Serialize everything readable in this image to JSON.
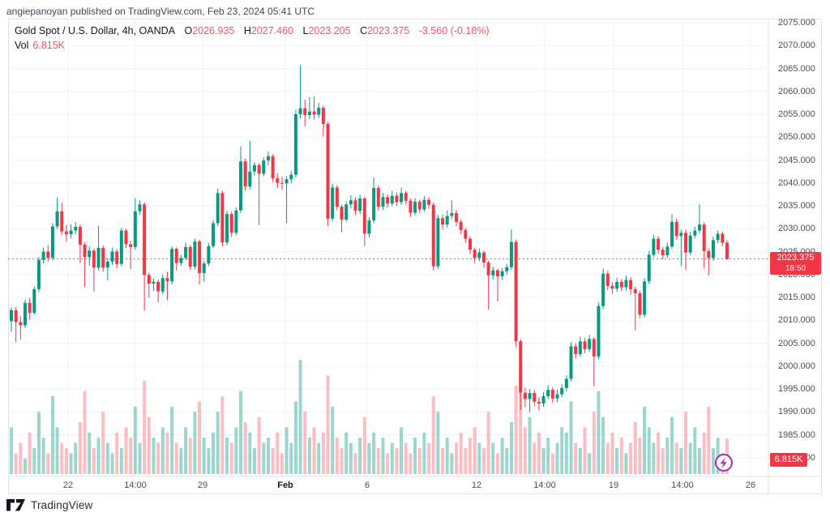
{
  "page": {
    "attribution": "angiepanoyan published on TradingView.com, Feb 23, 2024 05:41 UTC"
  },
  "legend": {
    "title": "Gold Spot / U.S. Dollar, 4h, OANDA",
    "ohlc": [
      {
        "label": "O",
        "value": "2026.935"
      },
      {
        "label": "H",
        "value": "2027.460"
      },
      {
        "label": "L",
        "value": "2023.205"
      },
      {
        "label": "C",
        "value": "2023.375"
      }
    ],
    "change": "-3.560 (-0.18%)",
    "vol_label": "Vol",
    "vol_value": "6.815K"
  },
  "price_axis": {
    "labels": [
      "2075.000",
      "2070.000",
      "2065.000",
      "2060.000",
      "2055.000",
      "2050.000",
      "2045.000",
      "2040.000",
      "2035.000",
      "2030.000",
      "2025.000",
      "2020.000",
      "2015.000",
      "2010.000",
      "2005.000",
      "2000.000",
      "1995.000",
      "1990.000",
      "1985.000",
      "1980.000"
    ],
    "current_price": "2023.375",
    "countdown": "18:50",
    "current_volume": "6.815K"
  },
  "time_axis": {
    "labels": [
      {
        "text": "22",
        "x": 84,
        "bold": false
      },
      {
        "text": "14:00",
        "x": 167,
        "bold": false
      },
      {
        "text": "29",
        "x": 250,
        "bold": false
      },
      {
        "text": "Feb",
        "x": 352,
        "bold": true
      },
      {
        "text": "6",
        "x": 453,
        "bold": false
      },
      {
        "text": "12",
        "x": 588,
        "bold": false
      },
      {
        "text": "14:00",
        "x": 672,
        "bold": false
      },
      {
        "text": "19",
        "x": 757,
        "bold": false
      },
      {
        "text": "14:00",
        "x": 842,
        "bold": false
      },
      {
        "text": "26",
        "x": 926,
        "bold": false
      }
    ]
  },
  "footer": {
    "brand": "TradingView"
  },
  "chart_data": {
    "type": "candlestick",
    "symbol": "Gold Spot / U.S. Dollar",
    "interval": "4h",
    "exchange": "OANDA",
    "last": {
      "open": 2026.935,
      "high": 2027.46,
      "low": 2023.205,
      "close": 2023.375,
      "change": -3.56,
      "change_pct": -0.18,
      "volume_k": 6.815
    },
    "ylim": [
      1977,
      2077
    ],
    "grid": true,
    "legend_position": "top-left",
    "colors": {
      "up": "#089981",
      "down": "#f23645",
      "vol_up": "rgba(8,153,129,0.40)",
      "vol_down": "rgba(242,54,69,0.32)",
      "grid": "#f0f3fa",
      "frame": "#e0e3eb",
      "axis_text": "#4a4e59",
      "label_bg": "#f23645",
      "dashed_line": "#f23645",
      "lightning": "#a72abf",
      "logo": "#131722"
    },
    "candles": [
      [
        2009.8,
        2012.8,
        2007.5,
        2012.2,
        9
      ],
      [
        2012.2,
        2012.9,
        2005.2,
        2009.6,
        4
      ],
      [
        2009.6,
        2010.9,
        2005.8,
        2008.9,
        6
      ],
      [
        2008.9,
        2014.5,
        2008.3,
        2013.8,
        3
      ],
      [
        2013.8,
        2014.9,
        2010.1,
        2011.6,
        8
      ],
      [
        2011.6,
        2017.4,
        2011.2,
        2016.8,
        5
      ],
      [
        2016.8,
        2023.8,
        2016.2,
        2023.2,
        12
      ],
      [
        2023.2,
        2025.9,
        2022.4,
        2025.0,
        7
      ],
      [
        2025.0,
        2026.4,
        2022.8,
        2023.6,
        4
      ],
      [
        2023.6,
        2031.2,
        2023.1,
        2030.5,
        15
      ],
      [
        2030.5,
        2036.8,
        2029.9,
        2033.8,
        9
      ],
      [
        2033.8,
        2035.6,
        2028.6,
        2029.4,
        6
      ],
      [
        2029.4,
        2030.8,
        2027.2,
        2028.8,
        5
      ],
      [
        2028.8,
        2031.0,
        2027.9,
        2029.6,
        4
      ],
      [
        2029.6,
        2031.5,
        2028.8,
        2030.4,
        6
      ],
      [
        2030.4,
        2030.9,
        2022.5,
        2026.5,
        10
      ],
      [
        2026.5,
        2027.0,
        2017.2,
        2023.8,
        16
      ],
      [
        2023.8,
        2026.1,
        2021.9,
        2025.2,
        8
      ],
      [
        2025.2,
        2025.6,
        2016.3,
        2021.5,
        5
      ],
      [
        2021.5,
        2030.6,
        2020.9,
        2025.8,
        7
      ],
      [
        2025.8,
        2026.3,
        2020.6,
        2021.5,
        12
      ],
      [
        2021.5,
        2023.6,
        2018.7,
        2022.8,
        6
      ],
      [
        2022.8,
        2025.9,
        2022.1,
        2025.0,
        4
      ],
      [
        2025.0,
        2025.5,
        2021.4,
        2022.3,
        8
      ],
      [
        2022.3,
        2030.2,
        2021.8,
        2029.6,
        5
      ],
      [
        2029.6,
        2030.0,
        2025.8,
        2026.6,
        9
      ],
      [
        2026.6,
        2027.4,
        2021.2,
        2026.0,
        7
      ],
      [
        2026.0,
        2036.7,
        2025.4,
        2033.8,
        13
      ],
      [
        2033.8,
        2036.2,
        2033.1,
        2035.3,
        6
      ],
      [
        2035.3,
        2035.8,
        2012.1,
        2019.9,
        18
      ],
      [
        2019.9,
        2020.4,
        2014.9,
        2018.0,
        11
      ],
      [
        2018.0,
        2019.1,
        2016.4,
        2018.4,
        7
      ],
      [
        2018.4,
        2018.9,
        2013.9,
        2016.3,
        6
      ],
      [
        2016.3,
        2020.0,
        2015.7,
        2019.2,
        9
      ],
      [
        2019.2,
        2020.6,
        2014.4,
        2018.5,
        8
      ],
      [
        2018.5,
        2026.2,
        2017.9,
        2025.6,
        13
      ],
      [
        2025.6,
        2026.0,
        2020.8,
        2022.5,
        6
      ],
      [
        2022.5,
        2024.3,
        2021.9,
        2023.6,
        5
      ],
      [
        2023.6,
        2027.0,
        2023.1,
        2026.0,
        9
      ],
      [
        2026.0,
        2026.4,
        2020.9,
        2021.7,
        7
      ],
      [
        2021.7,
        2027.8,
        2021.1,
        2027.2,
        12
      ],
      [
        2027.2,
        2027.6,
        2017.8,
        2020.3,
        14
      ],
      [
        2020.3,
        2023.0,
        2018.4,
        2022.4,
        7
      ],
      [
        2022.4,
        2026.9,
        2021.8,
        2026.2,
        5
      ],
      [
        2026.2,
        2031.9,
        2025.7,
        2031.2,
        8
      ],
      [
        2031.2,
        2038.8,
        2030.6,
        2037.8,
        12
      ],
      [
        2037.8,
        2038.3,
        2026.1,
        2027.0,
        15
      ],
      [
        2027.0,
        2033.9,
        2026.4,
        2033.2,
        7
      ],
      [
        2033.2,
        2033.7,
        2028.2,
        2029.1,
        6
      ],
      [
        2029.1,
        2034.7,
        2028.5,
        2034.0,
        9
      ],
      [
        2034.0,
        2048.0,
        2033.4,
        2044.7,
        16
      ],
      [
        2044.7,
        2045.3,
        2038.3,
        2039.2,
        10
      ],
      [
        2039.2,
        2049.2,
        2038.6,
        2042.5,
        8
      ],
      [
        2042.5,
        2044.6,
        2041.6,
        2043.9,
        5
      ],
      [
        2043.9,
        2044.3,
        2030.7,
        2042.0,
        11
      ],
      [
        2042.0,
        2045.6,
        2041.4,
        2044.9,
        6
      ],
      [
        2044.9,
        2046.9,
        2043.9,
        2045.8,
        7
      ],
      [
        2045.8,
        2046.3,
        2040.2,
        2041.0,
        5
      ],
      [
        2041.0,
        2042.1,
        2038.8,
        2040.0,
        8
      ],
      [
        2040.0,
        2041.3,
        2038.5,
        2039.9,
        4
      ],
      [
        2039.9,
        2041.5,
        2031.2,
        2040.8,
        9
      ],
      [
        2040.8,
        2042.6,
        2039.9,
        2041.8,
        6
      ],
      [
        2041.8,
        2056.0,
        2041.2,
        2055.0,
        14
      ],
      [
        2055.0,
        2065.7,
        2054.1,
        2056.3,
        22
      ],
      [
        2056.3,
        2058.2,
        2052.3,
        2054.8,
        12
      ],
      [
        2054.8,
        2058.8,
        2053.9,
        2055.6,
        7
      ],
      [
        2055.6,
        2058.9,
        2053.8,
        2054.9,
        9
      ],
      [
        2054.9,
        2057.5,
        2054.2,
        2056.4,
        6
      ],
      [
        2056.4,
        2056.9,
        2050.1,
        2052.9,
        8
      ],
      [
        2052.9,
        2053.3,
        2030.6,
        2032.2,
        19
      ],
      [
        2032.2,
        2039.8,
        2031.6,
        2039.0,
        13
      ],
      [
        2039.0,
        2039.5,
        2034.0,
        2034.8,
        7
      ],
      [
        2034.8,
        2035.2,
        2029.2,
        2032.0,
        5
      ],
      [
        2032.0,
        2036.0,
        2031.5,
        2035.3,
        8
      ],
      [
        2035.3,
        2037.3,
        2034.4,
        2036.2,
        6
      ],
      [
        2036.2,
        2036.8,
        2033.0,
        2033.9,
        4
      ],
      [
        2033.9,
        2037.4,
        2033.2,
        2036.6,
        7
      ],
      [
        2036.6,
        2037.0,
        2026.2,
        2028.9,
        11
      ],
      [
        2028.9,
        2032.5,
        2028.1,
        2031.8,
        6
      ],
      [
        2031.8,
        2041.2,
        2031.2,
        2038.9,
        8
      ],
      [
        2038.9,
        2039.4,
        2033.9,
        2034.8,
        5
      ],
      [
        2034.8,
        2037.8,
        2034.1,
        2036.9,
        7
      ],
      [
        2036.9,
        2037.5,
        2034.6,
        2035.5,
        4
      ],
      [
        2035.5,
        2038.3,
        2034.9,
        2037.2,
        6
      ],
      [
        2037.2,
        2037.9,
        2035.0,
        2035.8,
        5
      ],
      [
        2035.8,
        2039.0,
        2035.2,
        2037.8,
        9
      ],
      [
        2037.8,
        2038.3,
        2035.3,
        2036.1,
        6
      ],
      [
        2036.1,
        2036.6,
        2032.6,
        2033.5,
        4
      ],
      [
        2033.5,
        2036.7,
        2032.9,
        2035.9,
        7
      ],
      [
        2035.9,
        2036.4,
        2033.4,
        2034.2,
        5
      ],
      [
        2034.2,
        2037.1,
        2033.7,
        2036.3,
        8
      ],
      [
        2036.3,
        2036.9,
        2034.3,
        2035.2,
        6
      ],
      [
        2035.2,
        2035.7,
        2020.9,
        2021.8,
        15
      ],
      [
        2021.8,
        2033.0,
        2021.2,
        2032.3,
        12
      ],
      [
        2032.3,
        2033.1,
        2029.8,
        2030.9,
        5
      ],
      [
        2030.9,
        2034.0,
        2030.2,
        2032.8,
        7
      ],
      [
        2032.8,
        2036.2,
        2032.1,
        2033.4,
        4
      ],
      [
        2033.4,
        2034.1,
        2030.6,
        2031.5,
        6
      ],
      [
        2031.5,
        2032.0,
        2028.8,
        2029.7,
        8
      ],
      [
        2029.7,
        2030.2,
        2026.9,
        2027.8,
        5
      ],
      [
        2027.8,
        2028.3,
        2024.5,
        2025.4,
        7
      ],
      [
        2025.4,
        2025.9,
        2022.4,
        2023.6,
        9
      ],
      [
        2023.6,
        2025.7,
        2022.9,
        2024.8,
        6
      ],
      [
        2024.8,
        2025.2,
        2021.5,
        2022.6,
        5
      ],
      [
        2022.6,
        2023.0,
        2012.4,
        2019.8,
        12
      ],
      [
        2019.8,
        2021.7,
        2018.9,
        2020.9,
        6
      ],
      [
        2020.9,
        2021.3,
        2014.1,
        2019.6,
        4
      ],
      [
        2019.6,
        2021.4,
        2018.8,
        2020.7,
        7
      ],
      [
        2020.7,
        2022.3,
        2019.9,
        2021.6,
        5
      ],
      [
        2021.6,
        2029.8,
        2021.0,
        2027.1,
        10
      ],
      [
        2027.1,
        2027.6,
        2004.2,
        2005.4,
        17
      ],
      [
        2005.4,
        2005.9,
        1990.4,
        1994.2,
        20
      ],
      [
        1994.2,
        1995.3,
        1991.0,
        1992.8,
        9
      ],
      [
        1992.8,
        1995.0,
        1989.8,
        1994.1,
        11
      ],
      [
        1994.1,
        1994.8,
        1991.2,
        1992.2,
        6
      ],
      [
        1992.2,
        1993.1,
        1990.3,
        1991.8,
        8
      ],
      [
        1991.8,
        1994.3,
        1991.1,
        1993.4,
        5
      ],
      [
        1993.4,
        1995.8,
        1992.8,
        1994.8,
        7
      ],
      [
        1994.8,
        1995.4,
        1992.0,
        1992.9,
        4
      ],
      [
        1992.9,
        1994.9,
        1992.1,
        1993.8,
        6
      ],
      [
        1993.8,
        1996.0,
        1993.2,
        1995.2,
        9
      ],
      [
        1995.2,
        1998.0,
        1994.6,
        1997.2,
        8
      ],
      [
        1997.2,
        2005.2,
        1996.7,
        2004.3,
        14
      ],
      [
        2004.3,
        2005.0,
        2001.6,
        2002.6,
        6
      ],
      [
        2002.6,
        2006.4,
        2002.0,
        2005.4,
        5
      ],
      [
        2005.4,
        2006.1,
        2002.8,
        2003.7,
        9
      ],
      [
        2003.7,
        2006.8,
        2003.1,
        2005.9,
        4
      ],
      [
        2005.9,
        2006.3,
        1995.6,
        2002.1,
        12
      ],
      [
        2002.1,
        2013.9,
        2001.5,
        2013.1,
        16
      ],
      [
        2013.1,
        2021.3,
        2012.5,
        2020.2,
        11
      ],
      [
        2020.2,
        2020.9,
        2016.6,
        2017.5,
        6
      ],
      [
        2017.5,
        2018.3,
        2015.8,
        2016.9,
        8
      ],
      [
        2016.9,
        2019.3,
        2016.2,
        2018.4,
        5
      ],
      [
        2018.4,
        2019.0,
        2016.4,
        2017.2,
        7
      ],
      [
        2017.2,
        2019.7,
        2016.5,
        2018.8,
        4
      ],
      [
        2018.8,
        2019.4,
        2015.6,
        2016.8,
        6
      ],
      [
        2016.8,
        2017.3,
        2007.8,
        2015.9,
        10
      ],
      [
        2015.9,
        2016.4,
        2010.4,
        2011.2,
        7
      ],
      [
        2011.2,
        2019.2,
        2010.6,
        2018.5,
        13
      ],
      [
        2018.5,
        2025.1,
        2017.9,
        2024.3,
        9
      ],
      [
        2024.3,
        2028.6,
        2023.8,
        2027.8,
        6
      ],
      [
        2027.8,
        2028.3,
        2024.5,
        2025.4,
        8
      ],
      [
        2025.4,
        2026.0,
        2023.3,
        2024.2,
        5
      ],
      [
        2024.2,
        2026.9,
        2023.6,
        2026.1,
        7
      ],
      [
        2026.1,
        2033.1,
        2025.6,
        2031.5,
        11
      ],
      [
        2031.5,
        2032.2,
        2027.6,
        2028.4,
        6
      ],
      [
        2028.4,
        2029.8,
        2021.8,
        2029.1,
        5
      ],
      [
        2029.1,
        2029.8,
        2021.0,
        2024.8,
        12
      ],
      [
        2024.8,
        2029.3,
        2024.2,
        2028.5,
        6
      ],
      [
        2028.5,
        2030.4,
        2027.9,
        2029.6,
        9
      ],
      [
        2029.6,
        2035.3,
        2029.0,
        2030.9,
        5
      ],
      [
        2030.9,
        2031.4,
        2021.3,
        2025.1,
        8
      ],
      [
        2025.1,
        2025.7,
        2019.8,
        2023.6,
        13
      ],
      [
        2023.6,
        2028.3,
        2023.0,
        2027.5,
        5
      ],
      [
        2027.5,
        2029.6,
        2026.8,
        2028.9,
        7
      ],
      [
        2028.9,
        2029.4,
        2026.1,
        2026.9,
        4
      ],
      [
        2026.935,
        2027.46,
        2023.205,
        2023.375,
        6.815
      ]
    ]
  }
}
